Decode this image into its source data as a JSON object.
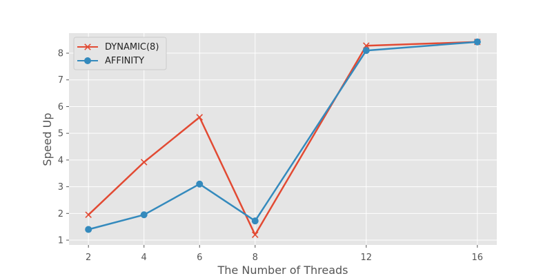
{
  "chart_data": {
    "type": "line",
    "title": "",
    "xlabel": "The Number of Threads",
    "ylabel": "Speed Up",
    "x": [
      2,
      4,
      6,
      8,
      12,
      16
    ],
    "x_ticks": [
      "2",
      "4",
      "6",
      "8",
      "12",
      "16"
    ],
    "y_ticks": [
      1,
      2,
      3,
      4,
      5,
      6,
      7,
      8
    ],
    "ylim": [
      0.82,
      8.75
    ],
    "grid": true,
    "legend_position": "top-left",
    "style": "ggplot",
    "series": [
      {
        "name": "DYNAMIC(8)",
        "values": [
          1.95,
          3.92,
          5.6,
          1.2,
          8.28,
          8.42
        ],
        "color": "#E24A33",
        "marker": "x"
      },
      {
        "name": "AFFINITY",
        "values": [
          1.4,
          1.95,
          3.1,
          1.72,
          8.1,
          8.42
        ],
        "color": "#348ABD",
        "marker": "circle"
      }
    ]
  }
}
